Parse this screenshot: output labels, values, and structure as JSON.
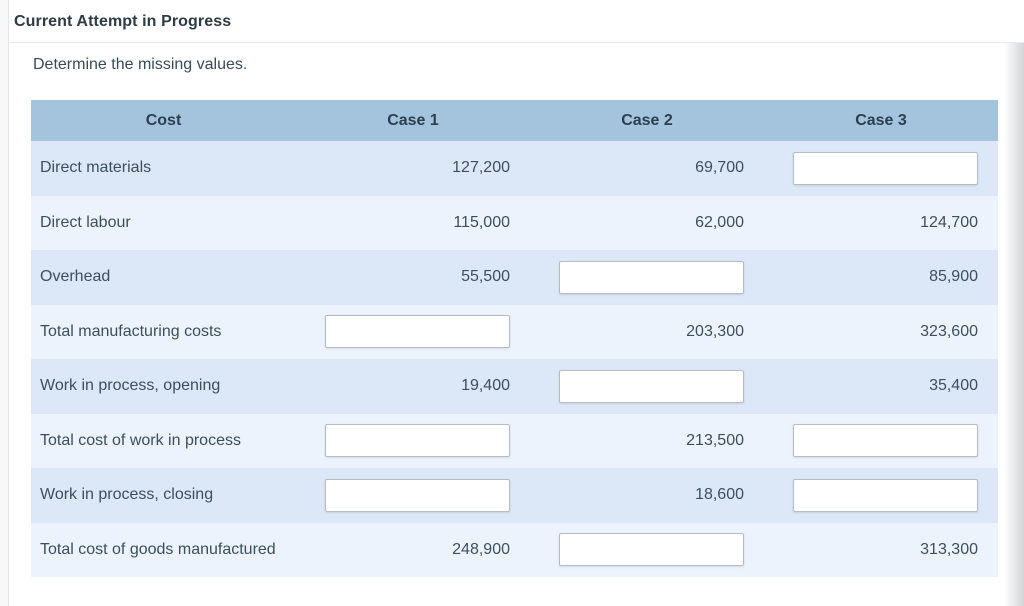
{
  "window": {
    "title": "Current Attempt in Progress"
  },
  "content": {
    "instruction": "Determine the missing values."
  },
  "colors": {
    "header_bg": "#a4c3dd",
    "row_dark": "#dce8f7",
    "row_light": "#ecf3fc",
    "title_text": "#2d3b45",
    "body_text": "#3d4e5c",
    "input_border": "#b6bcc1"
  },
  "table": {
    "headers": {
      "cost": "Cost",
      "case1": "Case 1",
      "case2": "Case 2",
      "case3": "Case 3"
    },
    "rows": [
      {
        "label": "Direct materials",
        "case1": {
          "type": "value",
          "text": "127,200"
        },
        "case2": {
          "type": "value",
          "text": "69,700"
        },
        "case3": {
          "type": "input",
          "value": ""
        }
      },
      {
        "label": "Direct labour",
        "case1": {
          "type": "value",
          "text": "115,000"
        },
        "case2": {
          "type": "value",
          "text": "62,000"
        },
        "case3": {
          "type": "value",
          "text": "124,700"
        }
      },
      {
        "label": "Overhead",
        "case1": {
          "type": "value",
          "text": "55,500"
        },
        "case2": {
          "type": "input",
          "value": ""
        },
        "case3": {
          "type": "value",
          "text": "85,900"
        }
      },
      {
        "label": "Total manufacturing costs",
        "case1": {
          "type": "input",
          "value": ""
        },
        "case2": {
          "type": "value",
          "text": "203,300"
        },
        "case3": {
          "type": "value",
          "text": "323,600"
        }
      },
      {
        "label": "Work in process, opening",
        "case1": {
          "type": "value",
          "text": "19,400"
        },
        "case2": {
          "type": "input",
          "value": ""
        },
        "case3": {
          "type": "value",
          "text": "35,400"
        }
      },
      {
        "label": "Total cost of work in process",
        "case1": {
          "type": "input",
          "value": ""
        },
        "case2": {
          "type": "value",
          "text": "213,500"
        },
        "case3": {
          "type": "input",
          "value": ""
        }
      },
      {
        "label": "Work in process, closing",
        "case1": {
          "type": "input",
          "value": ""
        },
        "case2": {
          "type": "value",
          "text": "18,600"
        },
        "case3": {
          "type": "input",
          "value": ""
        }
      },
      {
        "label": "Total cost of goods manufactured",
        "case1": {
          "type": "value",
          "text": "248,900"
        },
        "case2": {
          "type": "input",
          "value": ""
        },
        "case3": {
          "type": "value",
          "text": "313,300"
        }
      }
    ]
  }
}
